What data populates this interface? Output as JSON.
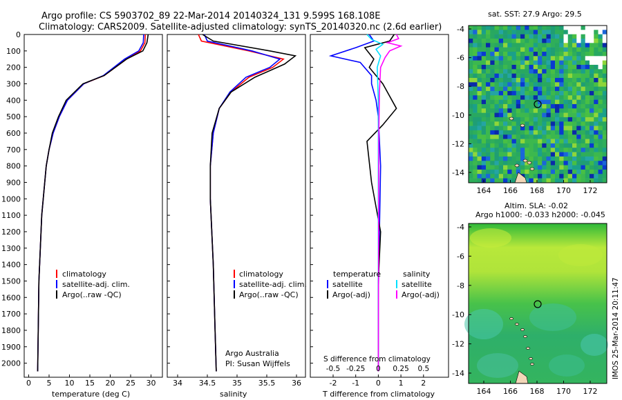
{
  "header": {
    "line1": "Argo profile: CS 5903702_89 22-Mar-2014 20140324_131 9.599S 168.108E",
    "line2": "Climatology: CARS2009. Satellite-adjusted climatology: synTS_20140320.nc (2.6d earlier)"
  },
  "depth_ticks": [
    "0",
    "100",
    "200",
    "300",
    "400",
    "500",
    "600",
    "700",
    "800",
    "900",
    "1000",
    "1100",
    "1200",
    "1300",
    "1400",
    "1500",
    "1600",
    "1700",
    "1800",
    "1900",
    "2000"
  ],
  "colors": {
    "climatology": "#ff0000",
    "satellite": "#0000ff",
    "argo": "#000000",
    "sat_salinity": "#00e0ff",
    "argo_salinity": "#ff00ff"
  },
  "panel_temp": {
    "xlabel": "temperature (deg C)",
    "xticks": [
      "0",
      "5",
      "10",
      "15",
      "20",
      "25",
      "30"
    ],
    "legend": [
      "climatology",
      "satellite-adj. clim.",
      "Argo(..raw -QC)"
    ]
  },
  "panel_sal": {
    "xlabel": "salinity",
    "xticks": [
      "34",
      "34.5",
      "35",
      "35.5",
      "36"
    ],
    "legend": [
      "climatology",
      "satellite-adj. clim.",
      "Argo(..raw -QC)"
    ],
    "credit1": "Argo Australia",
    "credit2": "PI: Susan Wijffels"
  },
  "panel_diff": {
    "xlabel": "T difference from climatology",
    "xticks": [
      "-2",
      "-1",
      "0",
      "1",
      "2"
    ],
    "s_label": "S difference from climatology",
    "s_ticks": [
      "-0.5",
      "-0.25",
      "0",
      "0.25",
      "0.5"
    ],
    "legend_t_title": "temperature",
    "legend_s_title": "salinity",
    "legend_t": [
      "satellite",
      "Argo(-adj)"
    ],
    "legend_s": [
      "satellite",
      "Argo(-adj)"
    ]
  },
  "map_sst": {
    "title": "sat. SST: 27.9  Argo: 29.5",
    "yticks": [
      "-4",
      "-6",
      "-8",
      "-10",
      "-12",
      "-14"
    ],
    "xticks": [
      "164",
      "166",
      "168",
      "170",
      "172"
    ]
  },
  "map_sla": {
    "title1": "Altim. SLA: -0.02",
    "title2": "Argo h1000: -0.033 h2000: -0.045",
    "yticks": [
      "-4",
      "-6",
      "-8",
      "-10",
      "-12",
      "-14"
    ],
    "xticks": [
      "164",
      "166",
      "168",
      "170",
      "172"
    ]
  },
  "footer": "IMOS 25-Mar-2014 20:11:47",
  "chart_data": [
    {
      "type": "line",
      "xlabel": "temperature (deg C)",
      "ylim": [
        2100,
        0
      ],
      "xlim": [
        -1,
        31
      ],
      "series": [
        {
          "name": "climatology",
          "x": [
            28.6,
            28.5,
            27.4,
            24,
            18.5,
            13.5,
            9.5,
            7.5,
            6,
            5,
            4.3,
            3.2,
            2.5,
            2.2
          ],
          "y": [
            0,
            50,
            100,
            150,
            250,
            300,
            400,
            500,
            600,
            700,
            800,
            1100,
            1500,
            2050
          ]
        },
        {
          "name": "satellite-adj. clim.",
          "x": [
            28.2,
            28.1,
            27,
            23.5,
            18.3,
            13.5,
            9.5,
            7.5,
            6,
            5,
            4.3,
            3.2,
            2.5,
            2.2
          ],
          "y": [
            0,
            50,
            100,
            150,
            250,
            300,
            400,
            500,
            600,
            700,
            800,
            1100,
            1500,
            2050
          ]
        },
        {
          "name": "Argo(..raw -QC)",
          "x": [
            29.3,
            29,
            28,
            24,
            18.5,
            13.3,
            9.2,
            7.3,
            5.8,
            5,
            4.3,
            3.2,
            2.5,
            2.2
          ],
          "y": [
            0,
            50,
            100,
            150,
            250,
            300,
            400,
            500,
            600,
            700,
            800,
            1100,
            1500,
            2050
          ]
        }
      ]
    },
    {
      "type": "line",
      "xlabel": "salinity",
      "ylim": [
        2100,
        0
      ],
      "xlim": [
        33.8,
        36.1
      ],
      "series": [
        {
          "name": "climatology",
          "x": [
            34.35,
            34.4,
            35.2,
            35.78,
            35.6,
            35.2,
            34.9,
            34.7,
            34.6,
            34.55,
            34.55,
            34.6,
            34.63,
            34.65
          ],
          "y": [
            0,
            40,
            100,
            150,
            200,
            260,
            350,
            450,
            600,
            800,
            1000,
            1400,
            1800,
            2050
          ]
        },
        {
          "name": "satellite-adj. clim.",
          "x": [
            34.45,
            34.5,
            35.25,
            35.72,
            35.55,
            35.15,
            34.88,
            34.7,
            34.6,
            34.55,
            34.55,
            34.6,
            34.63,
            34.65
          ],
          "y": [
            0,
            40,
            100,
            150,
            200,
            260,
            350,
            450,
            600,
            800,
            1000,
            1400,
            1800,
            2050
          ]
        },
        {
          "name": "Argo(..raw -QC)",
          "x": [
            34.42,
            34.6,
            35.55,
            35.98,
            35.8,
            35.3,
            34.9,
            34.7,
            34.58,
            34.55,
            34.55,
            34.6,
            34.63,
            34.65
          ],
          "y": [
            0,
            40,
            100,
            130,
            180,
            260,
            350,
            450,
            600,
            800,
            1000,
            1400,
            1800,
            2050
          ]
        }
      ]
    },
    {
      "type": "line",
      "xlabel": "T difference from climatology",
      "secondary_xlabel": "S difference from climatology",
      "ylim": [
        2100,
        0
      ],
      "xlim": [
        -2.5,
        2.8
      ],
      "series": [
        {
          "name": "satellite",
          "x": [
            -0.4,
            -0.2,
            -1,
            -2.1,
            -0.8,
            -0.3,
            -0.3,
            -0.1,
            0,
            0.1,
            0.05,
            0,
            0
          ],
          "y": [
            0,
            40,
            80,
            130,
            170,
            250,
            300,
            400,
            500,
            800,
            1200,
            1600,
            2050
          ]
        },
        {
          "name": "Argo(-adj)",
          "x": [
            0.7,
            0.5,
            -0.6,
            -0.2,
            -0.4,
            0.2,
            0.8,
            0.2,
            -0.5,
            -0.3,
            0.1,
            0,
            0
          ],
          "y": [
            0,
            40,
            80,
            150,
            200,
            300,
            450,
            550,
            650,
            900,
            1200,
            1500,
            2050
          ]
        }
      ]
    }
  ]
}
